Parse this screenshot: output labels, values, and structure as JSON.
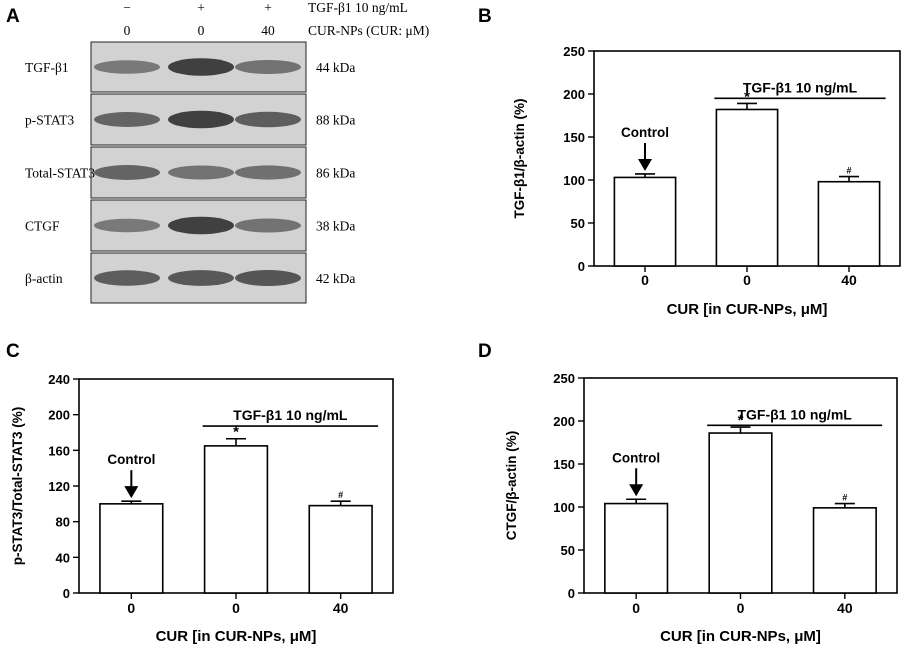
{
  "panel_labels": {
    "a": "A",
    "b": "B",
    "c": "C",
    "d": "D"
  },
  "blot": {
    "header_rows": [
      {
        "label": "TGF-β1 10 ng/mL",
        "values": [
          "−",
          "+",
          "+"
        ]
      },
      {
        "label": "CUR-NPs (CUR: μM)",
        "values": [
          "0",
          "0",
          "40"
        ]
      }
    ],
    "rows": [
      {
        "name": "TGF-β1",
        "kda": "44 kDa",
        "intensity": [
          0.55,
          0.95,
          0.6
        ]
      },
      {
        "name": "p-STAT3",
        "kda": "88 kDa",
        "intensity": [
          0.7,
          0.95,
          0.75
        ]
      },
      {
        "name": "Total-STAT3",
        "kda": "86 kDa",
        "intensity": [
          0.7,
          0.6,
          0.62
        ]
      },
      {
        "name": "CTGF",
        "kda": "38 kDa",
        "intensity": [
          0.55,
          0.95,
          0.6
        ]
      },
      {
        "name": "β-actin",
        "kda": "42 kDa",
        "intensity": [
          0.75,
          0.78,
          0.8
        ]
      }
    ]
  },
  "chart_data": [
    {
      "panel": "B",
      "type": "bar",
      "categories": [
        "0",
        "0",
        "40"
      ],
      "values": [
        103,
        182,
        98
      ],
      "errors": [
        4,
        7,
        6
      ],
      "marks": [
        "",
        "*",
        "#"
      ],
      "ylabel": "TGF-β1/β-actin (%)",
      "xlabel": "CUR [in CUR-NPs, μM]",
      "ylim": [
        0,
        250
      ],
      "yticks": [
        "0",
        "50",
        "100",
        "150",
        "200",
        "250"
      ],
      "bracket_label": "TGF-β1 10 ng/mL",
      "control_label": "Control"
    },
    {
      "panel": "C",
      "type": "bar",
      "categories": [
        "0",
        "0",
        "40"
      ],
      "values": [
        100,
        165,
        98
      ],
      "errors": [
        3,
        8,
        5
      ],
      "marks": [
        "",
        "*",
        "#"
      ],
      "ylabel": "p-STAT3/Total-STAT3 (%)",
      "xlabel": "CUR [in CUR-NPs, μM]",
      "ylim": [
        0,
        240
      ],
      "yticks": [
        "0",
        "40",
        "80",
        "120",
        "160",
        "200",
        "240"
      ],
      "bracket_label": "TGF-β1 10 ng/mL",
      "control_label": "Control"
    },
    {
      "panel": "D",
      "type": "bar",
      "categories": [
        "0",
        "0",
        "40"
      ],
      "values": [
        104,
        186,
        99
      ],
      "errors": [
        5,
        7,
        5
      ],
      "marks": [
        "",
        "*",
        "#"
      ],
      "ylabel": "CTGF/β-actin (%)",
      "xlabel": "CUR [in CUR-NPs, μM]",
      "ylim": [
        0,
        250
      ],
      "yticks": [
        "0",
        "50",
        "100",
        "150",
        "200",
        "250"
      ],
      "bracket_label": "TGF-β1 10 ng/mL",
      "control_label": "Control"
    }
  ]
}
